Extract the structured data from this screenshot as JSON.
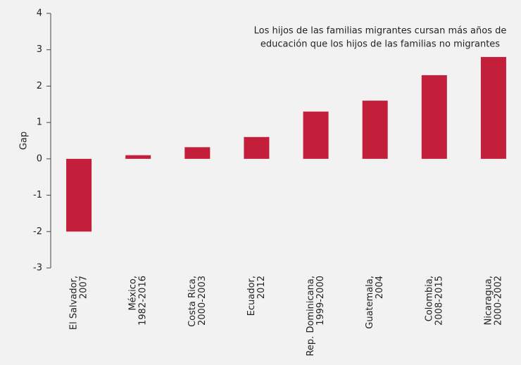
{
  "chart_data": {
    "type": "bar",
    "ylabel": "Gap",
    "annotation": [
      "Los hijos de las familias migrantes cursan más años de",
      "educación que los hijos de las familias no migrantes"
    ],
    "categories": [
      [
        "El Salvador,",
        "2007"
      ],
      [
        "México,",
        "1982-2016"
      ],
      [
        "Costa Rica,",
        "2000-2003"
      ],
      [
        "Ecuador,",
        "2012"
      ],
      [
        "Rep. Dominicana,",
        "1999-2000"
      ],
      [
        "Guatemala,",
        "2004"
      ],
      [
        "Colombia,",
        "2008-2015"
      ],
      [
        "Nicaragua,",
        "2000-2002"
      ]
    ],
    "values": [
      -2,
      0.1,
      0.32,
      0.6,
      1.3,
      1.6,
      2.3,
      2.8
    ],
    "color": "#c41f3a",
    "ylim": [
      -3,
      4
    ],
    "yticks": [
      -3,
      -2,
      -1,
      0,
      1,
      2,
      3,
      4
    ],
    "grid": false
  }
}
